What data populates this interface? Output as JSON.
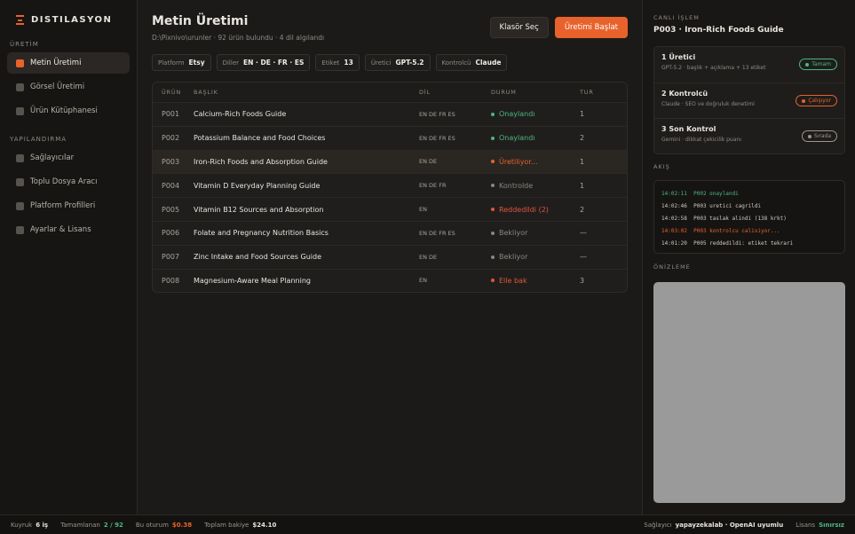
{
  "sidebar": {
    "brand": "DISTILASYON",
    "sections": [
      {
        "title": "ÜRETİM",
        "items": [
          "Metin Üretimi",
          "Görsel Üretimi",
          "Ürün Kütüphanesi"
        ]
      },
      {
        "title": "YAPILANDIRMA",
        "items": [
          "Sağlayıcılar",
          "Toplu Dosya Aracı",
          "Platform Profilleri",
          "Ayarlar & Lisans"
        ]
      }
    ],
    "active": "Metin Üretimi"
  },
  "header": {
    "title": "Metin Üretimi",
    "subtitle": "D:\\Pixnivo\\urunler · 92 ürün bulundu · 4 dil algılandı",
    "buttons": [
      "Klasör Seç",
      "Üretimi Başlat"
    ]
  },
  "chips": [
    {
      "label": "Platform",
      "value": "Etsy"
    },
    {
      "label": "Diller",
      "value": "EN · DE · FR · ES"
    },
    {
      "label": "Etiket",
      "value": "13"
    },
    {
      "label": "Üretici",
      "value": "GPT-5.2"
    },
    {
      "label": "Kontrolcü",
      "value": "Claude"
    }
  ],
  "table": {
    "columns": [
      "ÜRÜN",
      "BAŞLIK",
      "DİL",
      "DURUM",
      "TUR"
    ],
    "active_row": "P003",
    "rows": [
      {
        "cells": [
          "P001",
          "Calcium-Rich Foods Guide",
          "EN DE FR ES",
          "Onaylandı",
          "1"
        ],
        "color": "#4cb782"
      },
      {
        "cells": [
          "P002",
          "Potassium Balance and Food Choices",
          "EN DE FR ES",
          "Onaylandı",
          "2"
        ],
        "color": "#4cb782"
      },
      {
        "cells": [
          "P003",
          "Iron-Rich Foods and Absorption Guide",
          "EN DE",
          "Üretiliyor...",
          "1"
        ],
        "color": "#e8622c"
      },
      {
        "cells": [
          "P004",
          "Vitamin D Everyday Planning Guide",
          "EN DE FR",
          "Kontrolde",
          "1"
        ],
        "color": "#8a8580"
      },
      {
        "cells": [
          "P005",
          "Vitamin B12 Sources and Absorption",
          "EN",
          "Reddedildi (2)",
          "2"
        ],
        "color": "#e0553f"
      },
      {
        "cells": [
          "P006",
          "Folate and Pregnancy Nutrition Basics",
          "EN DE FR ES",
          "Bekliyor",
          "—"
        ],
        "color": "#8a8580"
      },
      {
        "cells": [
          "P007",
          "Zinc Intake and Food Sources Guide",
          "EN DE",
          "Bekliyor",
          "—"
        ],
        "color": "#8a8580"
      },
      {
        "cells": [
          "P008",
          "Magnesium-Aware Meal Planning",
          "EN",
          "Elle bak",
          "3"
        ],
        "color": "#e0553f"
      }
    ]
  },
  "live": {
    "label": "CANLI İŞLEM",
    "title": "P003 · Iron-Rich Foods Guide",
    "steps": [
      {
        "name": "1 Üretici",
        "desc": "GPT-5.2 · başlık + açıklama + 13 etiket",
        "badge": "Tamam",
        "color": "#4cb782"
      },
      {
        "name": "2 Kontrolcü",
        "desc": "Claude · SEO ve doğruluk denetimi",
        "badge": "Çalışıyor",
        "color": "#e8622c"
      },
      {
        "name": "3 Son Kontrol",
        "desc": "Gemini · dikkat çekicilik puanı",
        "badge": "Sırada",
        "color": "#9a958f"
      }
    ]
  },
  "flow": {
    "label": "AKIŞ",
    "lines": [
      {
        "text": "14:02:11  P002 onaylandi",
        "color": "#4cb782"
      },
      {
        "text": "14:02:46  P003 uretici cagrildi",
        "color": "#cfcac4"
      },
      {
        "text": "14:02:58  P003 taslak alindi (138 krkt)",
        "color": "#cfcac4"
      },
      {
        "text": "14:03:02  P003 kontrolcu calisiyor...",
        "color": "#e8622c"
      },
      {
        "text": "14:01:20  P005 reddedildi: etiket tekrari",
        "color": "#cfcac4"
      }
    ]
  },
  "preview": {
    "label": "ÖNİZLEME"
  },
  "footer": {
    "left": [
      {
        "label": "Kuyruk",
        "value": "6 iş",
        "color": "#e8e4df"
      },
      {
        "label": "Tamamlanan",
        "value": "2 / 92",
        "color": "#4cb782"
      },
      {
        "label": "Bu oturum",
        "value": "$0.38",
        "color": "#e8622c"
      },
      {
        "label": "Toplam bakiye",
        "value": "$24.10",
        "color": "#e8e4df"
      }
    ],
    "right": [
      {
        "label": "Sağlayıcı",
        "value": "yapayzekalab · OpenAI uyumlu",
        "color": "#e8e4df"
      },
      {
        "label": "Lisans",
        "value": "Sınırsız",
        "color": "#4cb782"
      }
    ]
  }
}
